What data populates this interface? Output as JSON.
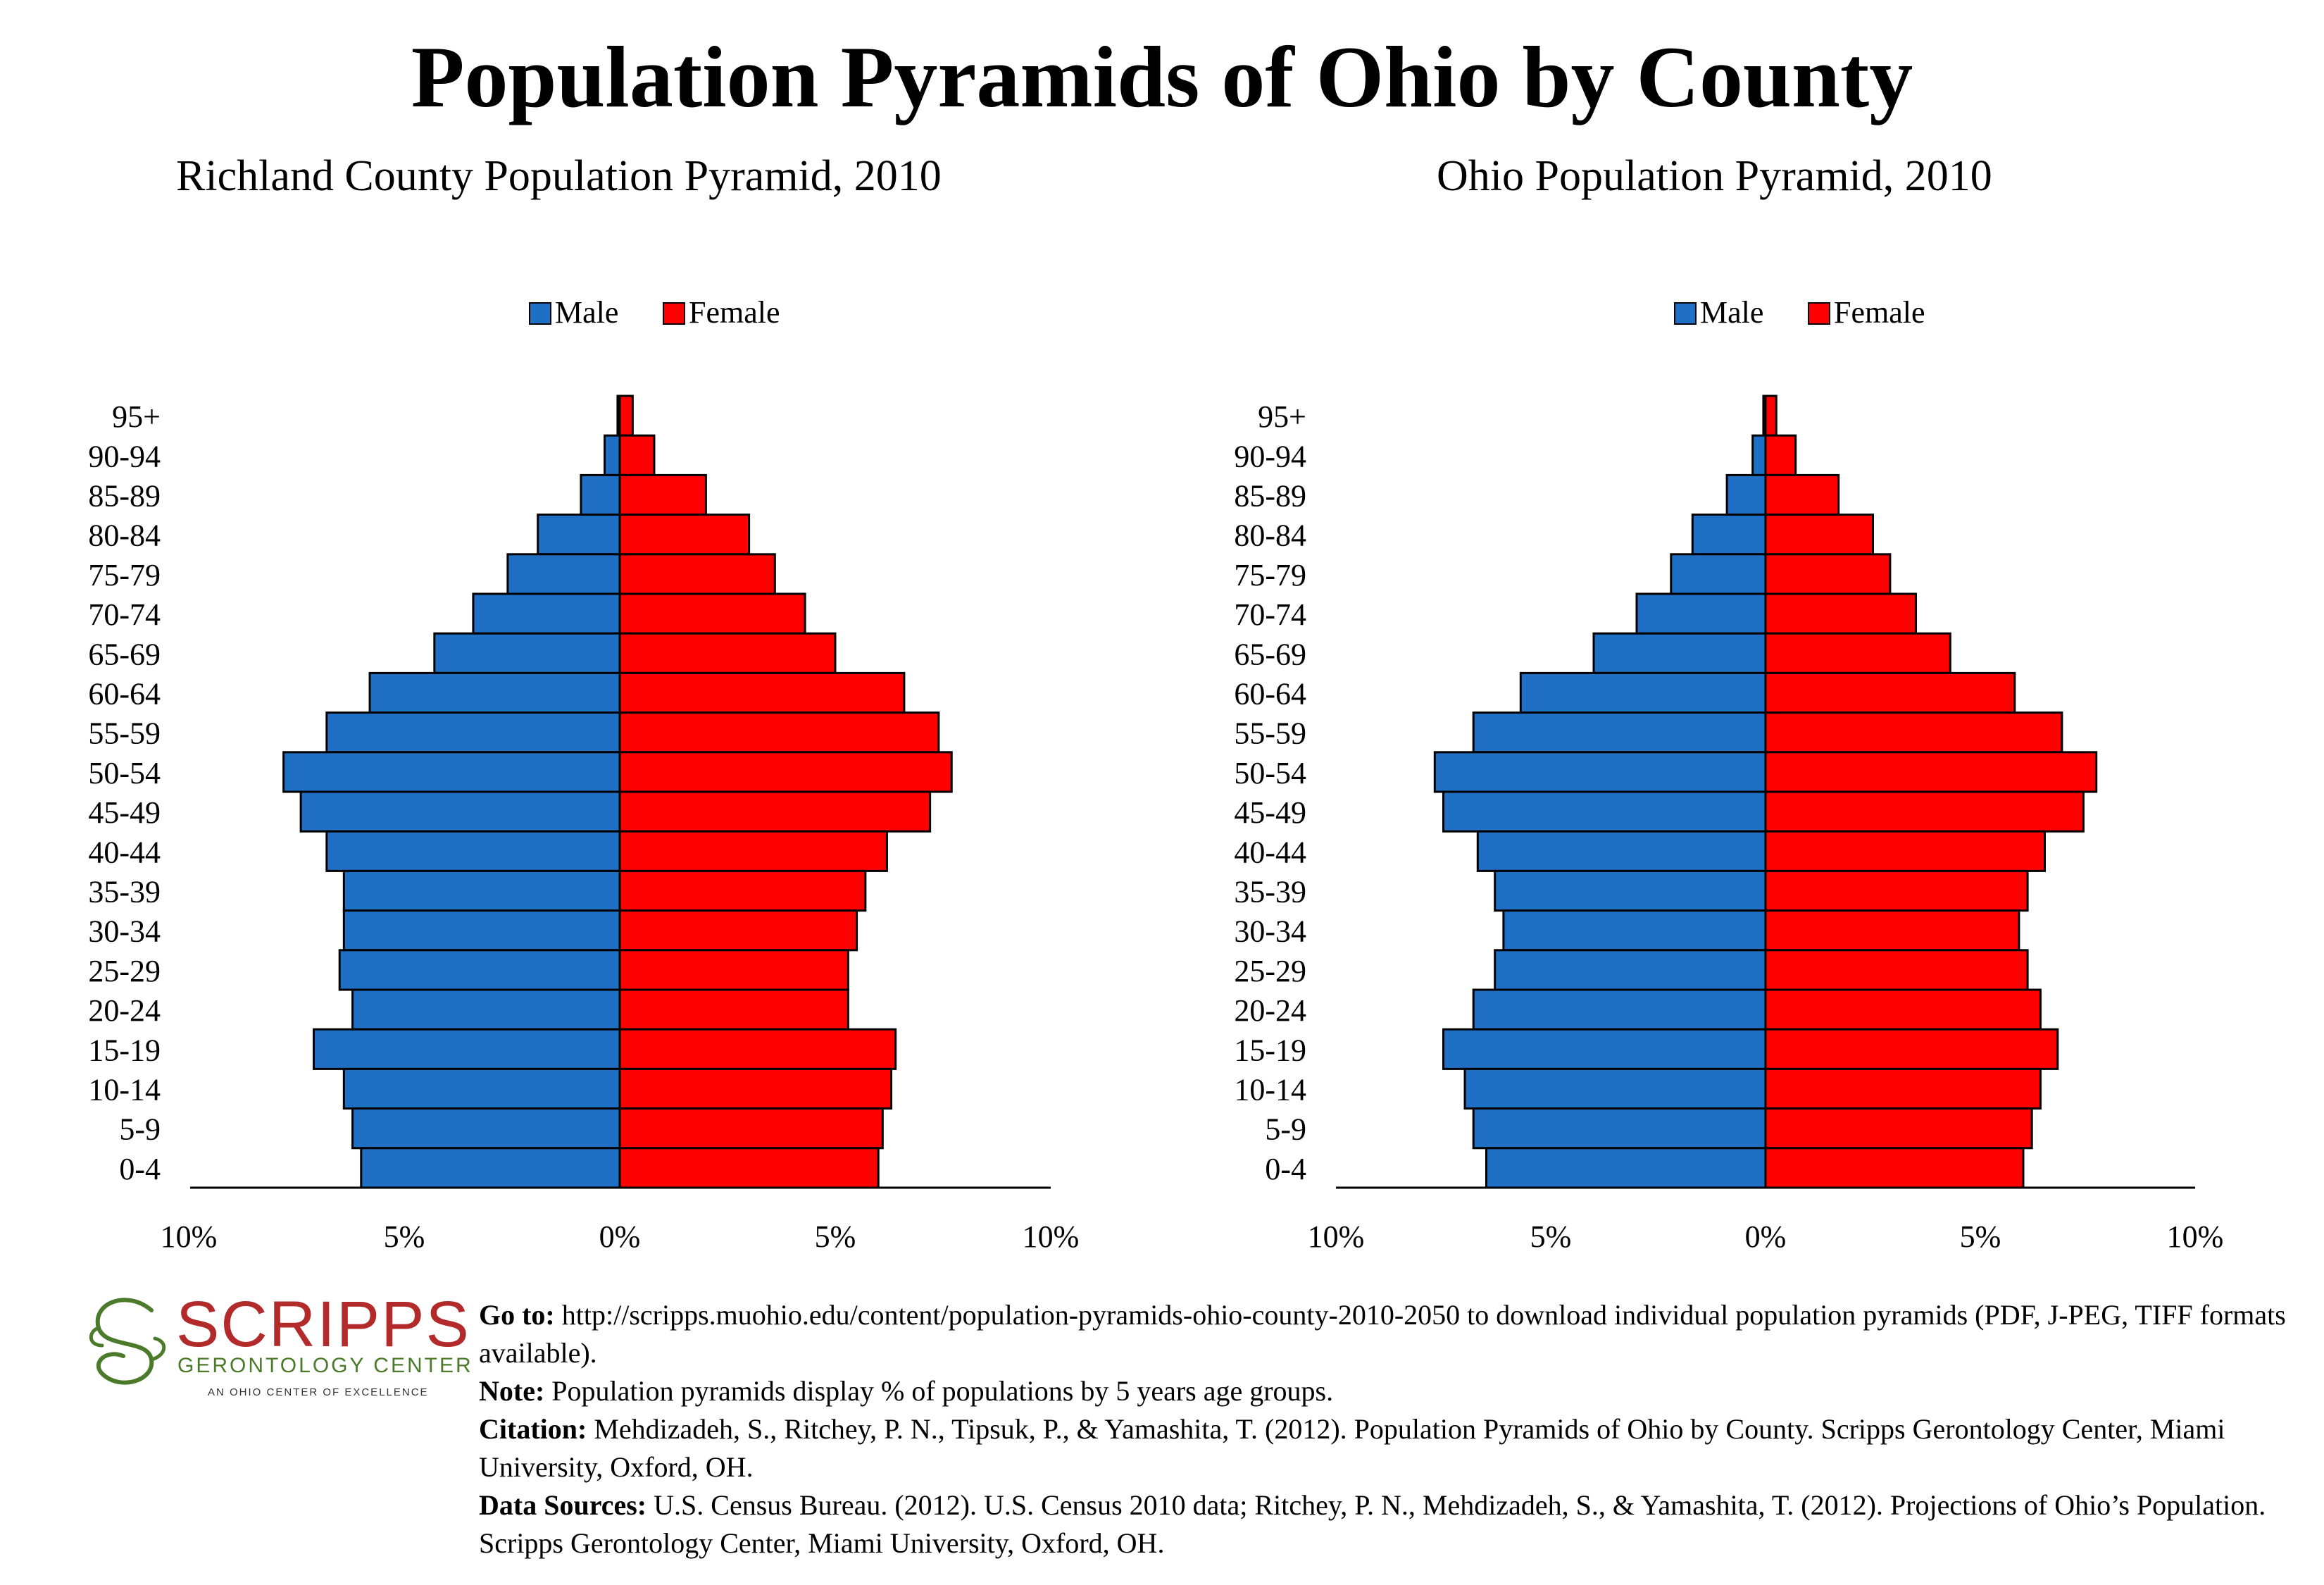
{
  "header": {
    "title": "Population Pyramids of Ohio by County"
  },
  "chart_data": [
    {
      "type": "bar",
      "title": "Richland County Population Pyramid, 2010",
      "orientation": "horizontal-diverging",
      "categories": [
        "0-4",
        "5-9",
        "10-14",
        "15-19",
        "20-24",
        "25-29",
        "30-34",
        "35-39",
        "40-44",
        "45-49",
        "50-54",
        "55-59",
        "60-64",
        "65-69",
        "70-74",
        "75-79",
        "80-84",
        "85-89",
        "90-94",
        "95+"
      ],
      "series": [
        {
          "name": "Male",
          "color": "#1f6fc5",
          "values": [
            6.0,
            6.2,
            6.4,
            7.1,
            6.2,
            6.5,
            6.4,
            6.4,
            6.8,
            7.4,
            7.8,
            6.8,
            5.8,
            4.3,
            3.4,
            2.6,
            1.9,
            0.9,
            0.35,
            0.05
          ]
        },
        {
          "name": "Female",
          "color": "#ff0000",
          "values": [
            6.0,
            6.1,
            6.3,
            6.4,
            5.3,
            5.3,
            5.5,
            5.7,
            6.2,
            7.2,
            7.7,
            7.4,
            6.6,
            5.0,
            4.3,
            3.6,
            3.0,
            2.0,
            0.8,
            0.3
          ]
        }
      ],
      "xlim": [
        -10,
        10
      ],
      "xticks": [
        "10%",
        "5%",
        "0%",
        "5%",
        "10%"
      ],
      "legend": "top-center"
    },
    {
      "type": "bar",
      "title": "Ohio Population Pyramid, 2010",
      "orientation": "horizontal-diverging",
      "categories": [
        "0-4",
        "5-9",
        "10-14",
        "15-19",
        "20-24",
        "25-29",
        "30-34",
        "35-39",
        "40-44",
        "45-49",
        "50-54",
        "55-59",
        "60-64",
        "65-69",
        "70-74",
        "75-79",
        "80-84",
        "85-89",
        "90-94",
        "95+"
      ],
      "series": [
        {
          "name": "Male",
          "color": "#1f6fc5",
          "values": [
            6.5,
            6.8,
            7.0,
            7.5,
            6.8,
            6.3,
            6.1,
            6.3,
            6.7,
            7.5,
            7.7,
            6.8,
            5.7,
            4.0,
            3.0,
            2.2,
            1.7,
            0.9,
            0.3,
            0.05
          ]
        },
        {
          "name": "Female",
          "color": "#ff0000",
          "values": [
            6.0,
            6.2,
            6.4,
            6.8,
            6.4,
            6.1,
            5.9,
            6.1,
            6.5,
            7.4,
            7.7,
            6.9,
            5.8,
            4.3,
            3.5,
            2.9,
            2.5,
            1.7,
            0.7,
            0.25
          ]
        }
      ],
      "xlim": [
        -10,
        10
      ],
      "xticks": [
        "10%",
        "5%",
        "0%",
        "5%",
        "10%"
      ],
      "legend": "top-center"
    }
  ],
  "logo": {
    "name": "SCRIPPS",
    "subtitle": "GERONTOLOGY CENTER",
    "tagline": "AN OHIO CENTER OF EXCELLENCE",
    "colors": {
      "name": "#b32a2a",
      "subtitle": "#4a7a2a"
    }
  },
  "footer": {
    "goto_label": "Go to:",
    "goto_text": " http://scripps.muohio.edu/content/population-pyramids-ohio-county-2010-2050 to download individual population pyramids (PDF, J-PEG, TIFF formats available).",
    "note_label": "Note:",
    "note_text": " Population pyramids display % of populations by 5 years age groups.",
    "citation_label": "Citation:",
    "citation_text": " Mehdizadeh, S., Ritchey, P. N., Tipsuk, P., & Yamashita, T. (2012). Population Pyramids of Ohio by County. Scripps Gerontology Center, Miami University, Oxford, OH.",
    "sources_label": "Data Sources:",
    "sources_text": " U.S. Census Bureau. (2012). U.S. Census 2010 data; Ritchey, P. N., Mehdizadeh, S., & Yamashita, T. (2012). Projections of Ohio’s Population. Scripps Gerontology Center, Miami University, Oxford, OH."
  }
}
